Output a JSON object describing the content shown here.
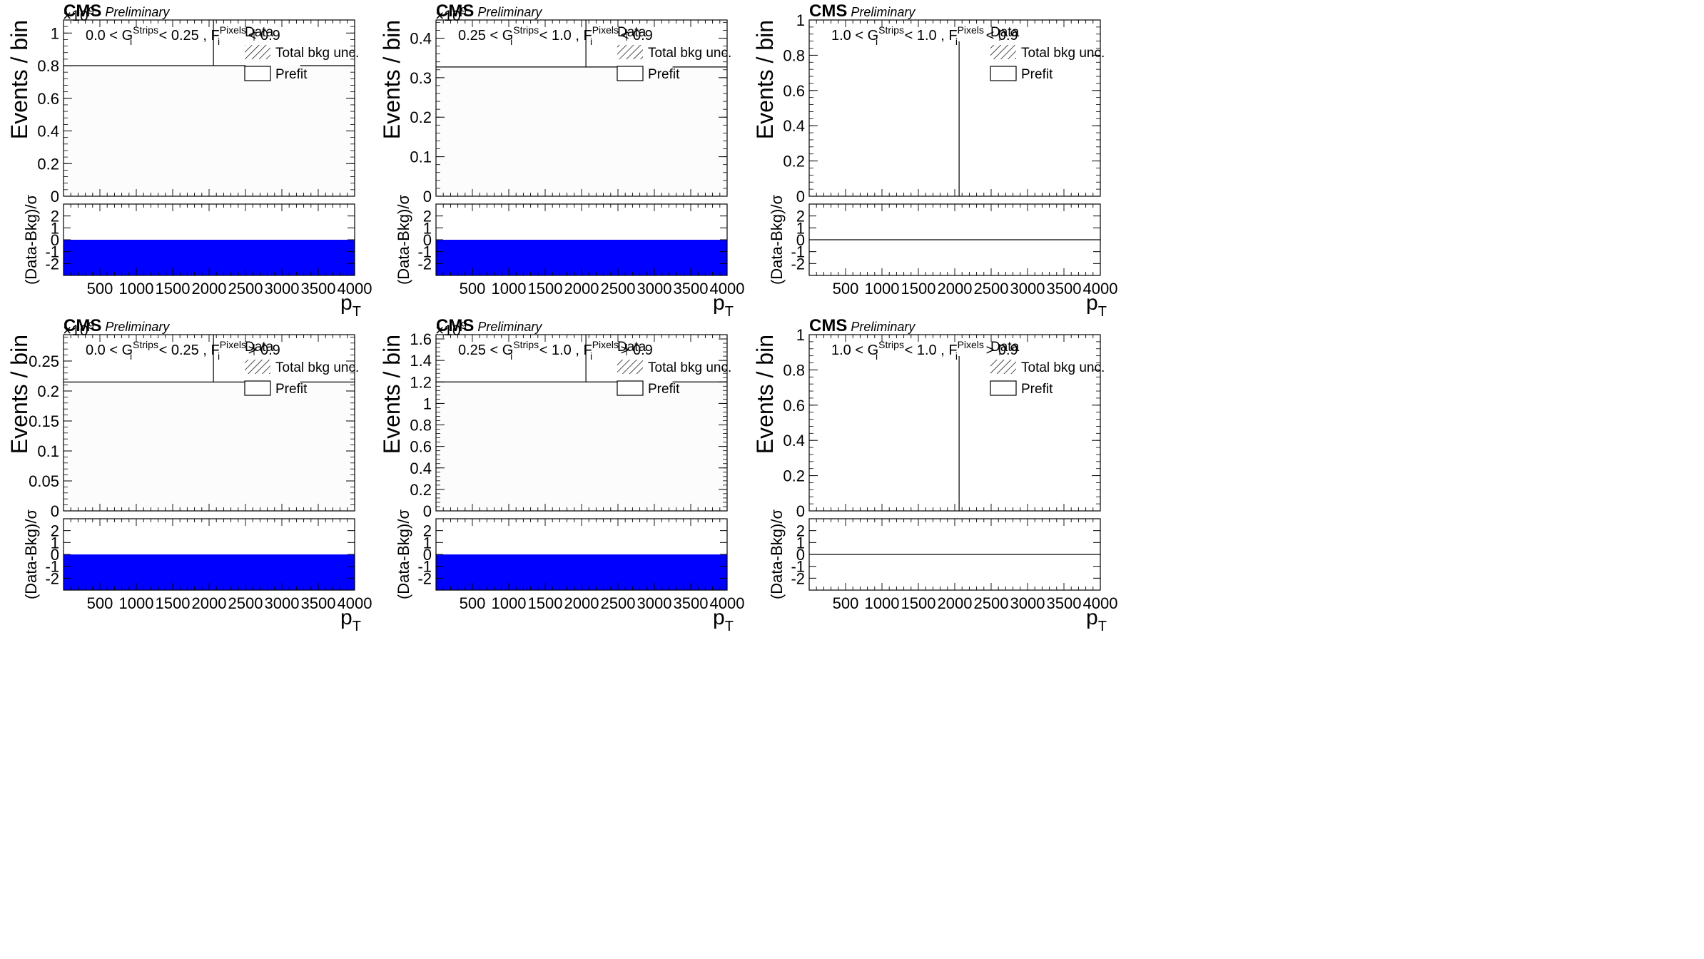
{
  "figure": {
    "common": {
      "cms_label": "CMS",
      "preliminary_label": "Preliminary",
      "ytitle_top": "Events / bin",
      "ytitle_ratio": "(Data-Bkg)/σ",
      "xtitle_main": "p",
      "xtitle_sub": "T",
      "legend": {
        "data": "Data",
        "bkg_unc": "Total bkg unc.",
        "prefit": "Prefit"
      },
      "xlim": [
        0,
        4000
      ],
      "xticks": [
        500,
        1000,
        1500,
        2000,
        2500,
        3000,
        3500,
        4000
      ],
      "ratio_ylim": [
        -3,
        3
      ],
      "ratio_yticks": [
        2,
        1,
        0,
        -1,
        -2
      ],
      "colors": {
        "ratio_fill": "#0000ff",
        "frame": "#000000",
        "band": "#fcfcfc"
      }
    }
  },
  "chart_data": [
    {
      "type": "bar",
      "panel": "top-left",
      "category_text": {
        "pre": "0.0 < G",
        "sup1": "Strips",
        "mid": " < 0.25 , F",
        "sup2": "Pixels",
        "post": " < 0.9",
        "sub1": "i",
        "sub2": "i"
      },
      "multiplier": "×10",
      "multiplier_exp": "9",
      "ylim": [
        0,
        1.08
      ],
      "yticks": [
        {
          "v": 0,
          "l": "0"
        },
        {
          "v": 0.2,
          "l": "0.2"
        },
        {
          "v": 0.4,
          "l": "0.4"
        },
        {
          "v": 0.6,
          "l": "0.6"
        },
        {
          "v": 0.8,
          "l": "0.8"
        },
        {
          "v": 1.0,
          "l": "1"
        }
      ],
      "prefit_level": 0.8,
      "data_x": 2060,
      "ratio_filled": true
    },
    {
      "type": "bar",
      "panel": "top-middle",
      "category_text": {
        "pre": "0.25 < G",
        "sup1": "Strips",
        "mid": " < 1.0 , F",
        "sup2": "Pixels",
        "post": " < 0.9",
        "sub1": "i",
        "sub2": "i"
      },
      "multiplier": "×10",
      "multiplier_exp": "9",
      "ylim": [
        0,
        0.446
      ],
      "yticks": [
        {
          "v": 0,
          "l": "0"
        },
        {
          "v": 0.1,
          "l": "0.1"
        },
        {
          "v": 0.2,
          "l": "0.2"
        },
        {
          "v": 0.3,
          "l": "0.3"
        },
        {
          "v": 0.4,
          "l": "0.4"
        }
      ],
      "prefit_level": 0.327,
      "data_x": 2060,
      "ratio_filled": true
    },
    {
      "type": "bar",
      "panel": "top-right",
      "category_text": {
        "pre": "1.0 < G",
        "sup1": "Strips",
        "mid": " < 1.0 , F",
        "sup2": "Pixels",
        "post": " < 0.9",
        "sub1": "i",
        "sub2": "i"
      },
      "multiplier": "",
      "multiplier_exp": "",
      "ylim": [
        0,
        1
      ],
      "yticks": [
        {
          "v": 0,
          "l": "0"
        },
        {
          "v": 0.2,
          "l": "0.2"
        },
        {
          "v": 0.4,
          "l": "0.4"
        },
        {
          "v": 0.6,
          "l": "0.6"
        },
        {
          "v": 0.8,
          "l": "0.8"
        },
        {
          "v": 1.0,
          "l": "1"
        }
      ],
      "prefit_level": null,
      "data_x": 2060,
      "ratio_filled": false
    },
    {
      "type": "bar",
      "panel": "bottom-left",
      "category_text": {
        "pre": "0.0 < G",
        "sup1": "Strips",
        "mid": " < 0.25 , F",
        "sup2": "Pixels",
        "post": " > 0.9",
        "sub1": "i",
        "sub2": "i"
      },
      "multiplier": "×10",
      "multiplier_exp": "9",
      "ylim": [
        0,
        0.294
      ],
      "yticks": [
        {
          "v": 0,
          "l": "0"
        },
        {
          "v": 0.05,
          "l": "0.05"
        },
        {
          "v": 0.1,
          "l": "0.1"
        },
        {
          "v": 0.15,
          "l": "0.15"
        },
        {
          "v": 0.2,
          "l": "0.2"
        },
        {
          "v": 0.25,
          "l": "0.25"
        }
      ],
      "prefit_level": 0.215,
      "data_x": 2060,
      "ratio_filled": true
    },
    {
      "type": "bar",
      "panel": "bottom-middle",
      "category_text": {
        "pre": "0.25 < G",
        "sup1": "Strips",
        "mid": " < 1.0 , F",
        "sup2": "Pixels",
        "post": " > 0.9",
        "sub1": "i",
        "sub2": "i"
      },
      "multiplier": "×10",
      "multiplier_exp": "9",
      "ylim": [
        0,
        1.64
      ],
      "yticks": [
        {
          "v": 0,
          "l": "0"
        },
        {
          "v": 0.2,
          "l": "0.2"
        },
        {
          "v": 0.4,
          "l": "0.4"
        },
        {
          "v": 0.6,
          "l": "0.6"
        },
        {
          "v": 0.8,
          "l": "0.8"
        },
        {
          "v": 1.0,
          "l": "1"
        },
        {
          "v": 1.2,
          "l": "1.2"
        },
        {
          "v": 1.4,
          "l": "1.4"
        },
        {
          "v": 1.6,
          "l": "1.6"
        }
      ],
      "prefit_level": 1.2,
      "data_x": 2060,
      "ratio_filled": true
    },
    {
      "type": "bar",
      "panel": "bottom-right",
      "category_text": {
        "pre": "1.0 < G",
        "sup1": "Strips",
        "mid": " < 1.0 , F",
        "sup2": "Pixels",
        "post": " > 0.9",
        "sub1": "i",
        "sub2": "i"
      },
      "multiplier": "",
      "multiplier_exp": "",
      "ylim": [
        0,
        1
      ],
      "yticks": [
        {
          "v": 0,
          "l": "0"
        },
        {
          "v": 0.2,
          "l": "0.2"
        },
        {
          "v": 0.4,
          "l": "0.4"
        },
        {
          "v": 0.6,
          "l": "0.6"
        },
        {
          "v": 0.8,
          "l": "0.8"
        },
        {
          "v": 1.0,
          "l": "1"
        }
      ],
      "prefit_level": null,
      "data_x": 2060,
      "ratio_filled": false
    }
  ]
}
